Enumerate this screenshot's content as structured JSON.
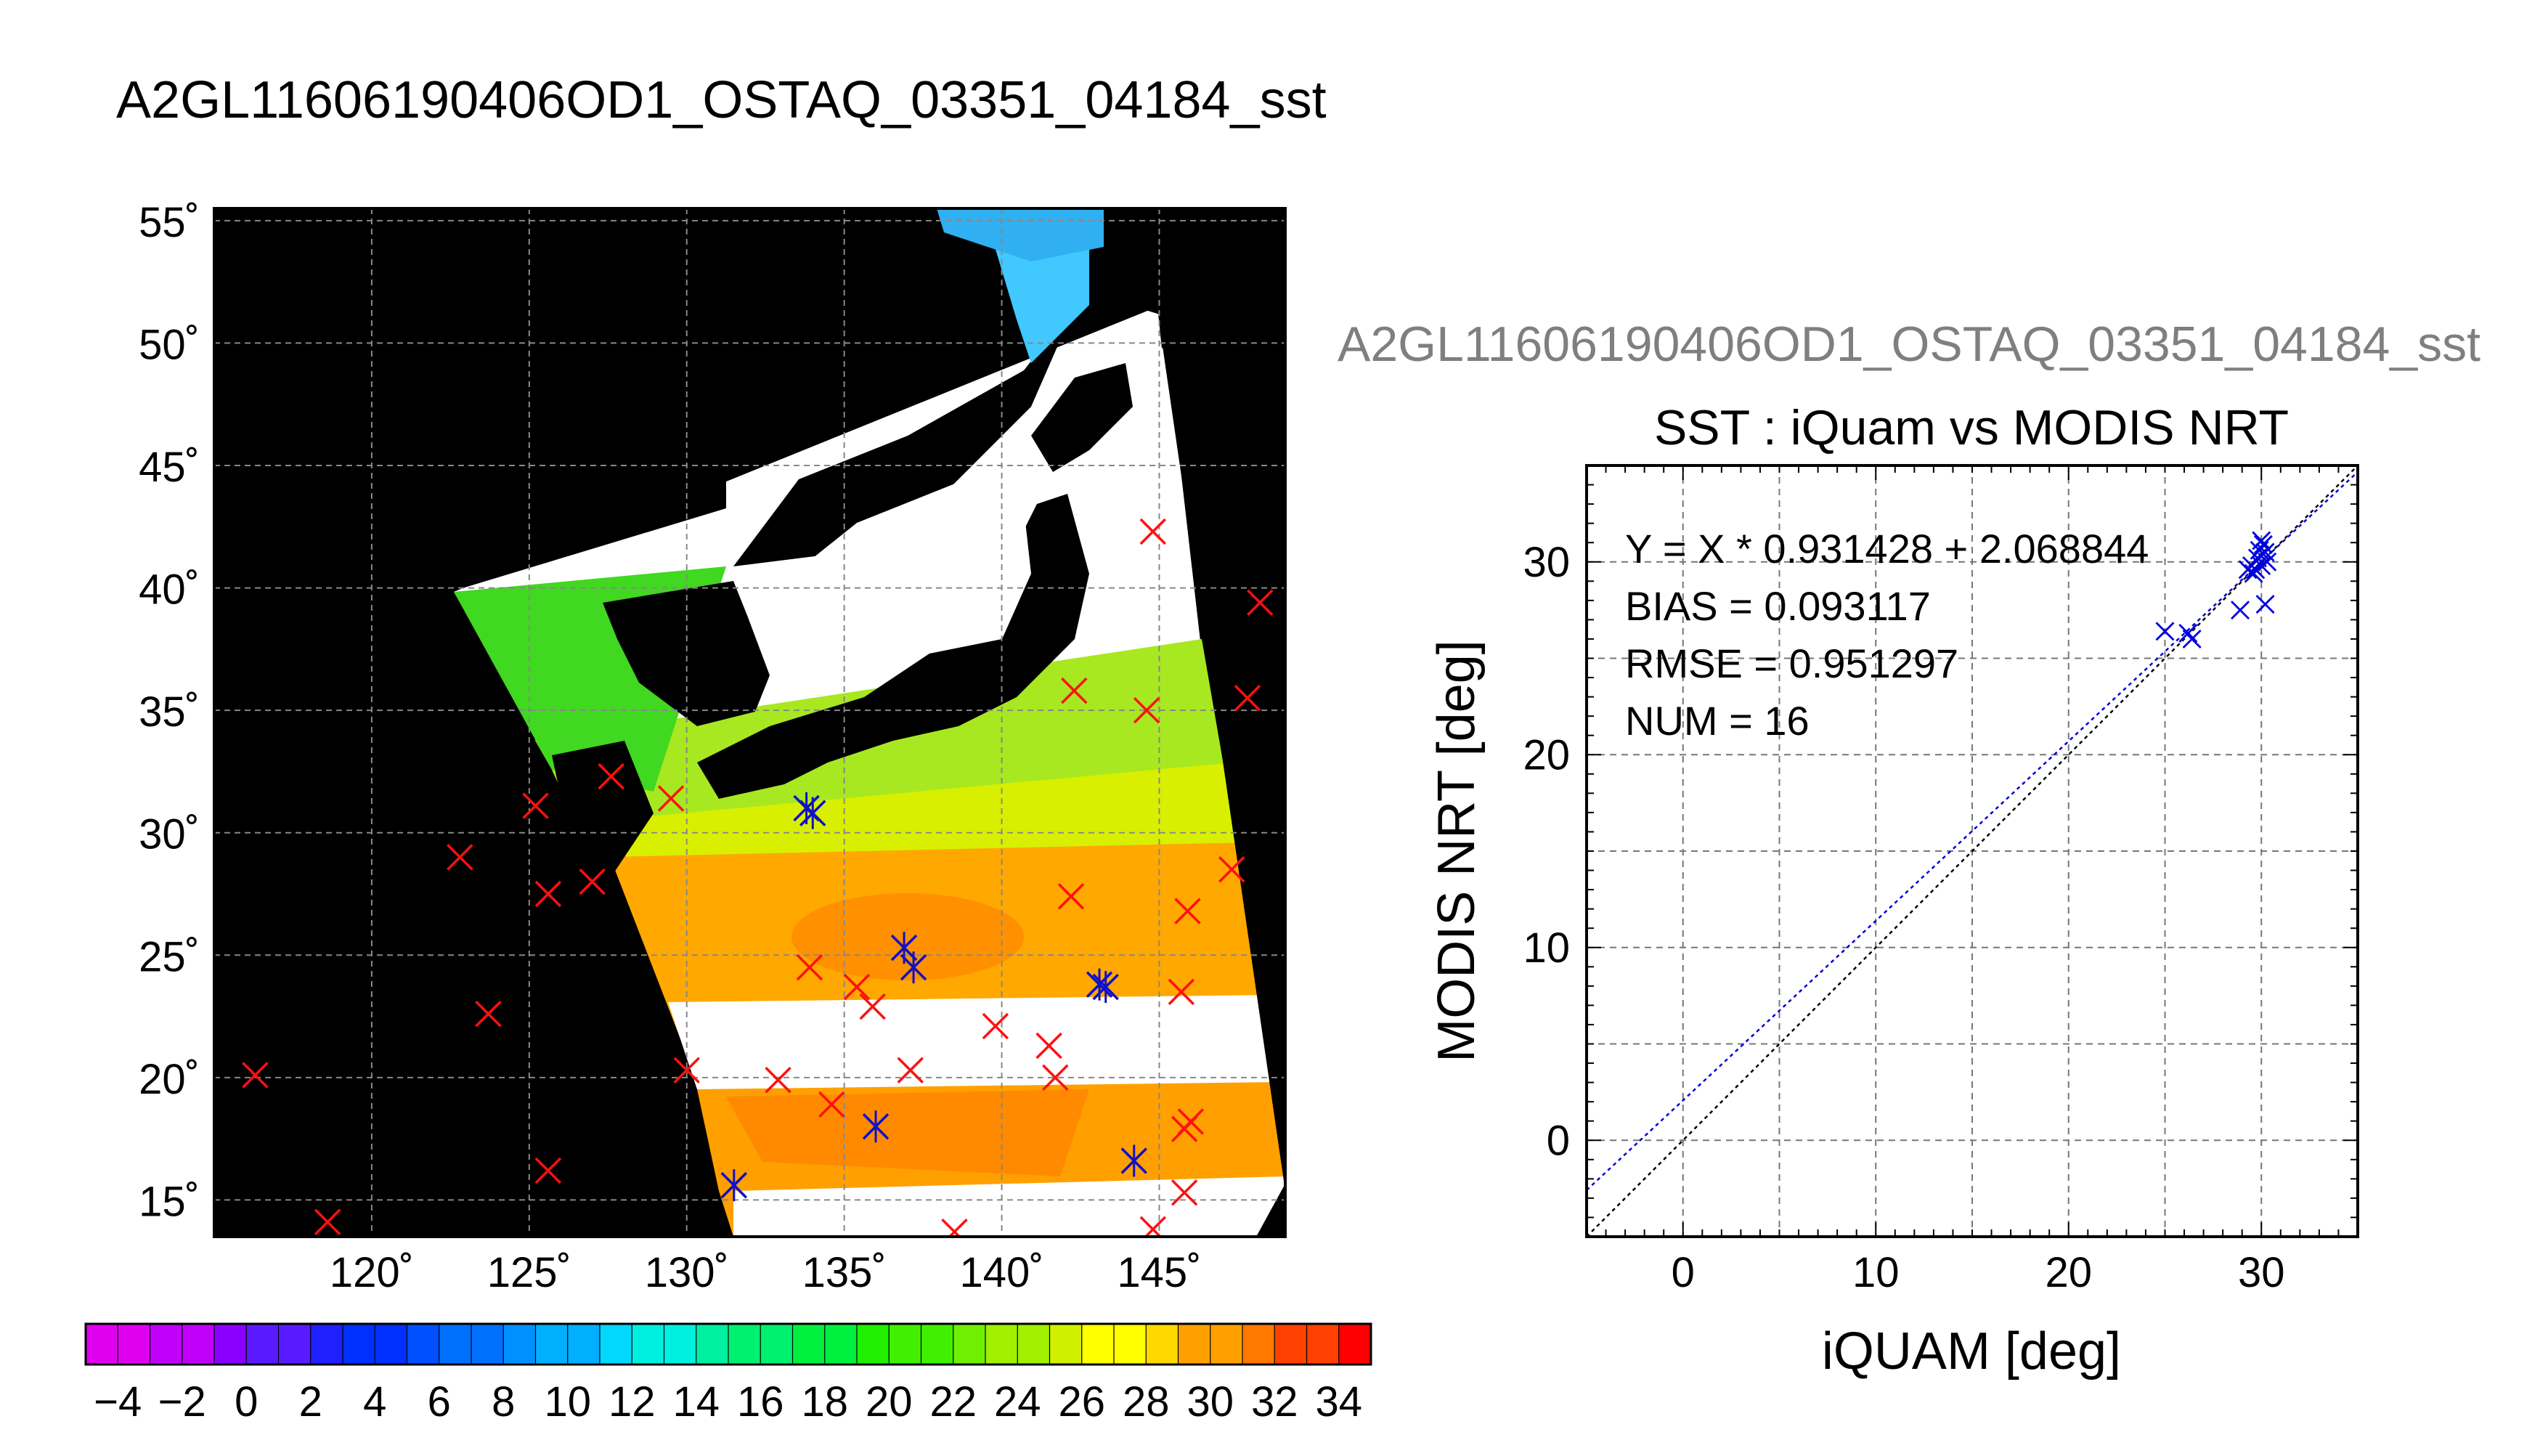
{
  "map": {
    "title": "A2GL11606190406OD1_OSTAQ_03351_04184_sst",
    "lat_labels": [
      "55˚",
      "50˚",
      "45˚",
      "40˚",
      "35˚",
      "30˚",
      "25˚",
      "20˚",
      "15˚"
    ],
    "lon_labels": [
      "120˚",
      "125˚",
      "130˚",
      "135˚",
      "140˚",
      "145˚"
    ],
    "colorbar": {
      "tick_labels": [
        "−4",
        "−2",
        "0",
        "2",
        "4",
        "6",
        "8",
        "10",
        "12",
        "14",
        "16",
        "18",
        "20",
        "22",
        "24",
        "26",
        "28",
        "30",
        "32",
        "34"
      ],
      "colors": [
        "#e000f0",
        "#c000f8",
        "#8a00ff",
        "#5a1aff",
        "#2020ff",
        "#0030ff",
        "#0050ff",
        "#0070ff",
        "#0090ff",
        "#00b0ff",
        "#00d8ff",
        "#00f0e0",
        "#00f0a0",
        "#00f070",
        "#00f040",
        "#20f000",
        "#40f000",
        "#70f000",
        "#a0f000",
        "#d0f000",
        "#ffff00",
        "#ffd800",
        "#ffa000",
        "#ff7800",
        "#ff4000",
        "#ff0000"
      ]
    },
    "markers_red": [
      [
        116.3,
        20.1
      ],
      [
        118.6,
        14.1
      ],
      [
        122.8,
        29.0
      ],
      [
        123.7,
        22.6
      ],
      [
        125.2,
        31.1
      ],
      [
        125.6,
        27.5
      ],
      [
        125.6,
        16.2
      ],
      [
        127.0,
        28.0
      ],
      [
        127.6,
        32.3
      ],
      [
        129.5,
        31.4
      ],
      [
        130.0,
        20.3
      ],
      [
        131.5,
        15.6
      ],
      [
        132.9,
        19.9
      ],
      [
        133.9,
        24.5
      ],
      [
        134.6,
        18.9
      ],
      [
        135.4,
        23.7
      ],
      [
        135.9,
        22.9
      ],
      [
        137.1,
        20.3
      ],
      [
        139.8,
        22.1
      ],
      [
        141.5,
        21.3
      ],
      [
        141.7,
        20.0
      ],
      [
        142.2,
        27.4
      ],
      [
        142.3,
        35.8
      ],
      [
        144.6,
        35.0
      ],
      [
        145.7,
        23.5
      ],
      [
        145.9,
        26.8
      ],
      [
        145.8,
        17.9
      ],
      [
        146.0,
        18.2
      ],
      [
        145.8,
        15.3
      ],
      [
        144.8,
        42.3
      ],
      [
        148.2,
        39.4
      ],
      [
        147.8,
        35.5
      ],
      [
        147.3,
        28.5
      ],
      [
        138.5,
        13.7
      ],
      [
        144.8,
        13.8
      ]
    ],
    "markers_blue": [
      [
        134.0,
        30.8
      ],
      [
        133.8,
        31.0
      ],
      [
        136.9,
        25.3
      ],
      [
        137.2,
        24.5
      ],
      [
        136.0,
        18.0
      ],
      [
        143.3,
        23.7
      ],
      [
        143.1,
        23.8
      ],
      [
        144.2,
        16.6
      ],
      [
        131.5,
        15.6
      ]
    ]
  },
  "scatter": {
    "file_label": "A2GL11606190406OD1_OSTAQ_03351_04184_sst",
    "title": "SST : iQuam vs MODIS NRT",
    "xlabel": "iQUAM [deg]",
    "ylabel": "MODIS NRT [deg]",
    "x_tick_labels": [
      "0",
      "10",
      "20",
      "30"
    ],
    "y_tick_labels": [
      "0",
      "10",
      "20",
      "30"
    ],
    "stats": {
      "equation": "Y = X * 0.931428 + 2.068844",
      "bias": "BIAS = 0.093117",
      "rmse": "RMSE = 0.951297",
      "num": "NUM = 16"
    }
  },
  "chart_data": [
    {
      "type": "heatmap",
      "title": "A2GL11606190406OD1_OSTAQ_03351_04184_sst",
      "xlabel": "",
      "ylabel": "",
      "xlim": [
        115,
        149
      ],
      "ylim": [
        13.5,
        55.5
      ],
      "x_ticks": [
        120,
        125,
        130,
        135,
        140,
        145
      ],
      "y_ticks": [
        15,
        20,
        25,
        30,
        35,
        40,
        45,
        50,
        55
      ],
      "colorbar_range": [
        -5,
        35
      ],
      "grid": true
    },
    {
      "type": "scatter",
      "title": "SST : iQuam vs MODIS NRT",
      "xlabel": "iQUAM [deg]",
      "ylabel": "MODIS NRT [deg]",
      "xlim": [
        -5,
        35
      ],
      "ylim": [
        -5,
        35
      ],
      "grid": true,
      "series": [
        {
          "x": [
            25.0,
            26.2,
            26.4,
            28.9,
            29.3,
            29.5,
            29.8,
            29.9,
            30.0,
            30.1,
            30.2,
            30.2,
            30.3,
            30.0,
            29.7,
            29.6
          ],
          "y": [
            26.4,
            26.3,
            26.0,
            27.5,
            29.6,
            29.8,
            30.2,
            30.6,
            31.1,
            30.9,
            30.5,
            27.8,
            30.0,
            29.8,
            29.6,
            29.4
          ]
        }
      ],
      "fit_line": {
        "slope": 0.931428,
        "intercept": 2.068844
      },
      "one_to_one_line": true
    }
  ]
}
